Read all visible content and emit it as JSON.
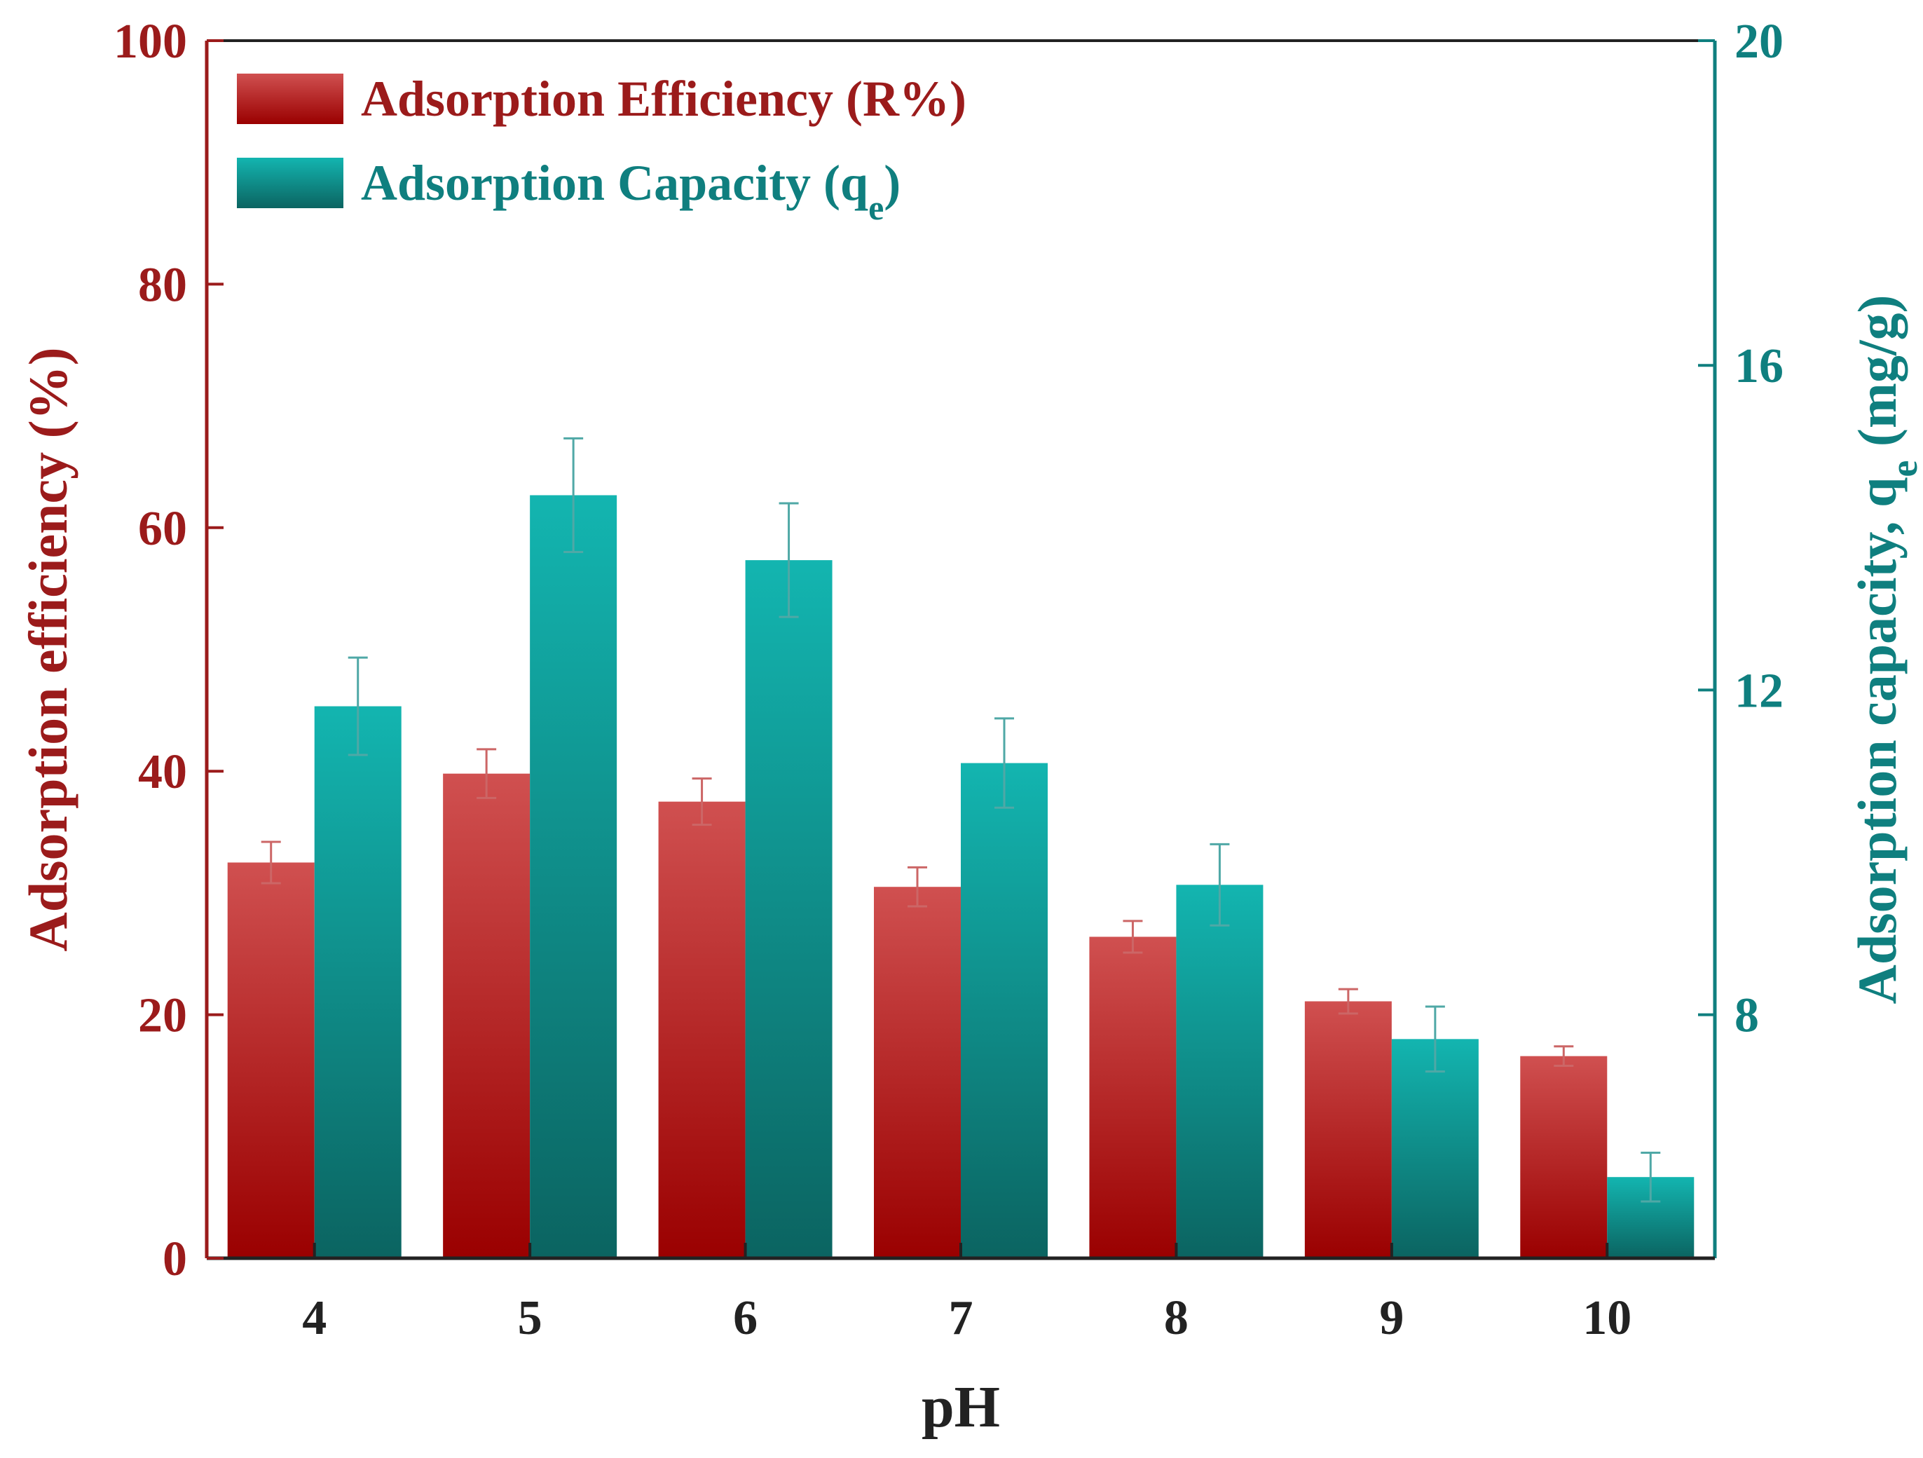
{
  "chart_data": {
    "type": "bar",
    "xlabel": "pH",
    "categories": [
      "4",
      "5",
      "6",
      "7",
      "8",
      "9",
      "10"
    ],
    "y_left": {
      "label": "Adsorption efficiency (%)",
      "lim": [
        0,
        100
      ],
      "ticks": [
        "0",
        "20",
        "40",
        "60",
        "80",
        "100"
      ],
      "color": "#9b1b1b"
    },
    "y_right": {
      "label_main": "Adsorption capacity, q",
      "label_sub": "e",
      "label_tail": " (mg/g)",
      "lim": [
        5,
        20
      ],
      "ticks": [
        "8",
        "12",
        "16",
        "20"
      ],
      "color": "#0f7f7f"
    },
    "series": [
      {
        "name_main": "Adsorption Efficiency (R%)",
        "name_sub": "",
        "name_tail": "",
        "axis": "left",
        "color_top": "#d05050",
        "color_bottom": "#9a0000",
        "values": [
          32.5,
          39.8,
          37.5,
          30.5,
          26.4,
          21.1,
          16.6
        ],
        "errors": [
          1.7,
          2.0,
          1.9,
          1.6,
          1.3,
          1.0,
          0.8
        ]
      },
      {
        "name_main": "Adsorption Capacity (q",
        "name_sub": "e",
        "name_tail": ")",
        "axis": "right",
        "color_top": "#13b5b0",
        "color_bottom": "#0b6461",
        "values": [
          11.8,
          14.4,
          13.6,
          11.1,
          9.6,
          7.7,
          6.0
        ],
        "errors": [
          0.6,
          0.7,
          0.7,
          0.55,
          0.5,
          0.4,
          0.3
        ]
      }
    ],
    "legend_position": "top-left"
  }
}
